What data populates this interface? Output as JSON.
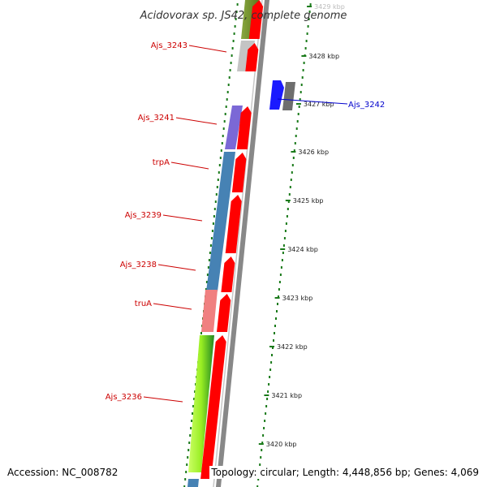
{
  "title": "Acidovorax sp. JS42, complete genome",
  "footer": {
    "accession": "Accession: NC_008782",
    "summary": "Topology: circular; Length: 4,448,856 bp; Genes: 4,069"
  },
  "scale": {
    "unit": "kbp",
    "ticks": [
      {
        "label": "3429 kbp",
        "value": 3429
      },
      {
        "label": "3428 kbp",
        "value": 3428
      },
      {
        "label": "3427 kbp",
        "value": 3427
      },
      {
        "label": "3426 kbp",
        "value": 3426
      },
      {
        "label": "3425 kbp",
        "value": 3425
      },
      {
        "label": "3424 kbp",
        "value": 3424
      },
      {
        "label": "3423 kbp",
        "value": 3423
      },
      {
        "label": "3422 kbp",
        "value": 3422
      },
      {
        "label": "3421 kbp",
        "value": 3421
      },
      {
        "label": "3420 kbp",
        "value": 3420
      }
    ]
  },
  "genes": [
    {
      "label": "Ajs_3243",
      "strand": "forward",
      "color": "#bdbdbd"
    },
    {
      "label": "Ajs_3242",
      "strand": "reverse",
      "color": "#1414ff"
    },
    {
      "label": "Ajs_3241",
      "strand": "forward",
      "color": "#7b68d6"
    },
    {
      "label": "trpA",
      "strand": "forward",
      "color": "#4682b4"
    },
    {
      "label": "Ajs_3239",
      "strand": "forward",
      "color": "#4682b4"
    },
    {
      "label": "Ajs_3238",
      "strand": "forward",
      "color": "#4682b4"
    },
    {
      "label": "truA",
      "strand": "forward",
      "color": "#f08080"
    },
    {
      "label": "Ajs_3236",
      "strand": "forward",
      "color": "#adff2f"
    }
  ],
  "colors": {
    "forward_label": "#cc0000",
    "reverse_label": "#0000cc",
    "cds": "#ff0000",
    "backbone": "#808080",
    "dots": "#1a7a1a"
  }
}
